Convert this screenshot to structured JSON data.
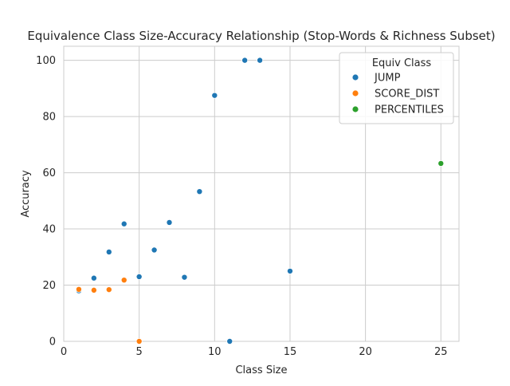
{
  "chart_data": {
    "type": "scatter",
    "title": "Equivalence Class Size-Accuracy Relationship (Stop-Words & Richness Subset)",
    "xlabel": "Class Size",
    "ylabel": "Accuracy",
    "xlim": [
      0,
      26.2
    ],
    "ylim": [
      0,
      105
    ],
    "xticks": [
      0,
      5,
      10,
      15,
      20,
      25
    ],
    "yticks": [
      0,
      20,
      40,
      60,
      80,
      100
    ],
    "grid": true,
    "legend": {
      "title": "Equiv Class",
      "placement": "top-right"
    },
    "series": [
      {
        "name": "JUMP",
        "color": "#1f77b4",
        "points": [
          {
            "x": 1,
            "y": 18.0
          },
          {
            "x": 2,
            "y": 22.5
          },
          {
            "x": 3,
            "y": 31.8
          },
          {
            "x": 4,
            "y": 41.8
          },
          {
            "x": 5,
            "y": 23.0
          },
          {
            "x": 6,
            "y": 32.5
          },
          {
            "x": 7,
            "y": 42.3
          },
          {
            "x": 8,
            "y": 22.8
          },
          {
            "x": 9,
            "y": 53.3
          },
          {
            "x": 10,
            "y": 87.5
          },
          {
            "x": 11,
            "y": 0.0
          },
          {
            "x": 12,
            "y": 100.0
          },
          {
            "x": 13,
            "y": 100.0
          },
          {
            "x": 15,
            "y": 25.0
          }
        ]
      },
      {
        "name": "SCORE_DIST",
        "color": "#ff7f0e",
        "points": [
          {
            "x": 1,
            "y": 18.5
          },
          {
            "x": 2,
            "y": 18.2
          },
          {
            "x": 3,
            "y": 18.4
          },
          {
            "x": 4,
            "y": 21.8
          },
          {
            "x": 5,
            "y": 0.0
          }
        ]
      },
      {
        "name": "PERCENTILES",
        "color": "#2ca02c",
        "points": [
          {
            "x": 25,
            "y": 63.3
          }
        ]
      }
    ]
  }
}
